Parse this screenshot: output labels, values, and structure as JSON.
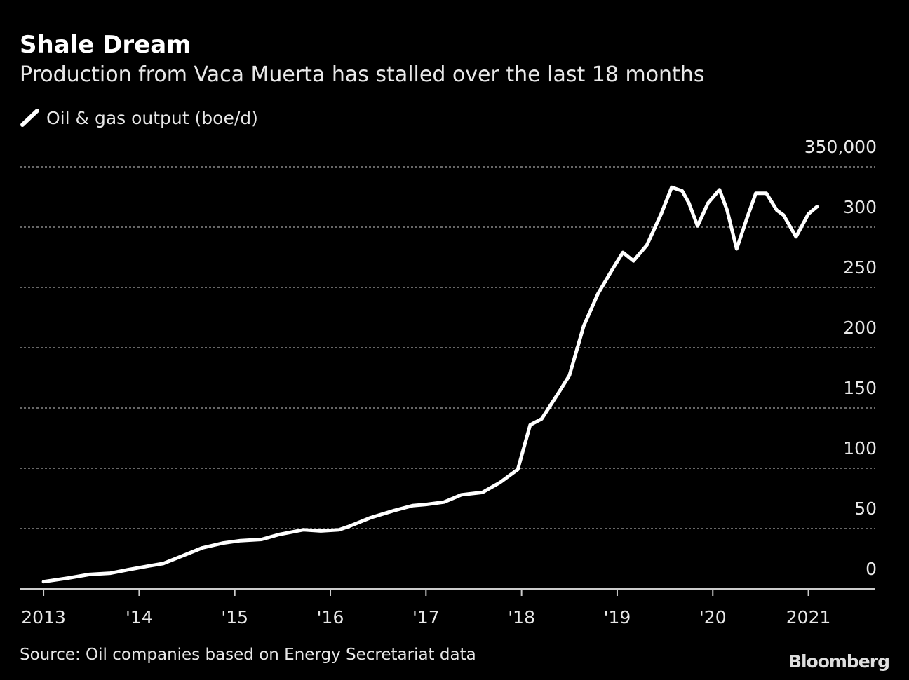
{
  "chart_data": {
    "type": "line",
    "title": "Shale Dream",
    "subtitle": "Production from Vaca Muerta has stalled over the last 18 months",
    "source": "Source: Oil companies based on Energy Secretariat data",
    "credit": "Bloomberg",
    "x": [
      2013.0,
      2013.26,
      2013.48,
      2013.7,
      2013.89,
      2014.1,
      2014.25,
      2014.44,
      2014.66,
      2014.88,
      2015.06,
      2015.28,
      2015.46,
      2015.72,
      2015.9,
      2016.09,
      2016.2,
      2016.42,
      2016.67,
      2016.86,
      2017.0,
      2017.19,
      2017.37,
      2017.59,
      2017.77,
      2017.96,
      2018.09,
      2018.21,
      2018.39,
      2018.5,
      2018.65,
      2018.8,
      2018.95,
      2019.06,
      2019.17,
      2019.31,
      2019.46,
      2019.57,
      2019.68,
      2019.75,
      2019.84,
      2019.95,
      2020.07,
      2020.15,
      2020.25,
      2020.36,
      2020.45,
      2020.56,
      2020.67,
      2020.74,
      2020.87,
      2021.0,
      2021.09
    ],
    "series": [
      {
        "name": "Oil & gas output (boe/d)",
        "color": "#ffffff",
        "values": [
          6000,
          9000,
          12000,
          13000,
          16000,
          19000,
          21000,
          27000,
          34000,
          38000,
          40000,
          41000,
          45000,
          49000,
          48000,
          49000,
          52000,
          59000,
          65000,
          69000,
          70000,
          72000,
          78000,
          80000,
          88000,
          99000,
          136000,
          141000,
          163000,
          177000,
          218000,
          245000,
          265000,
          279000,
          272000,
          285000,
          311000,
          333000,
          330000,
          320000,
          301000,
          320000,
          331000,
          314000,
          282000,
          308000,
          328000,
          328000,
          314000,
          310000,
          292000,
          311000,
          317000
        ]
      }
    ],
    "xlim": [
      2012.75,
      2021.7
    ],
    "xticks": [
      {
        "value": 2013,
        "label": "2013"
      },
      {
        "value": 2014,
        "label": "'14"
      },
      {
        "value": 2015,
        "label": "'15"
      },
      {
        "value": 2016,
        "label": "'16"
      },
      {
        "value": 2017,
        "label": "'17"
      },
      {
        "value": 2018,
        "label": "'18"
      },
      {
        "value": 2019,
        "label": "'19"
      },
      {
        "value": 2020,
        "label": "'20"
      },
      {
        "value": 2021,
        "label": "2021"
      }
    ],
    "ylim": [
      0,
      350000
    ],
    "yticks": [
      0,
      {
        "value": 50000,
        "label": "50"
      },
      {
        "value": 100000,
        "label": "100"
      },
      {
        "value": 150000,
        "label": "150"
      },
      {
        "value": 200000,
        "label": "200"
      },
      {
        "value": 250000,
        "label": "250"
      },
      {
        "value": 300000,
        "label": "300"
      },
      {
        "value": 350000,
        "label": "350,000"
      }
    ],
    "grid": true
  }
}
